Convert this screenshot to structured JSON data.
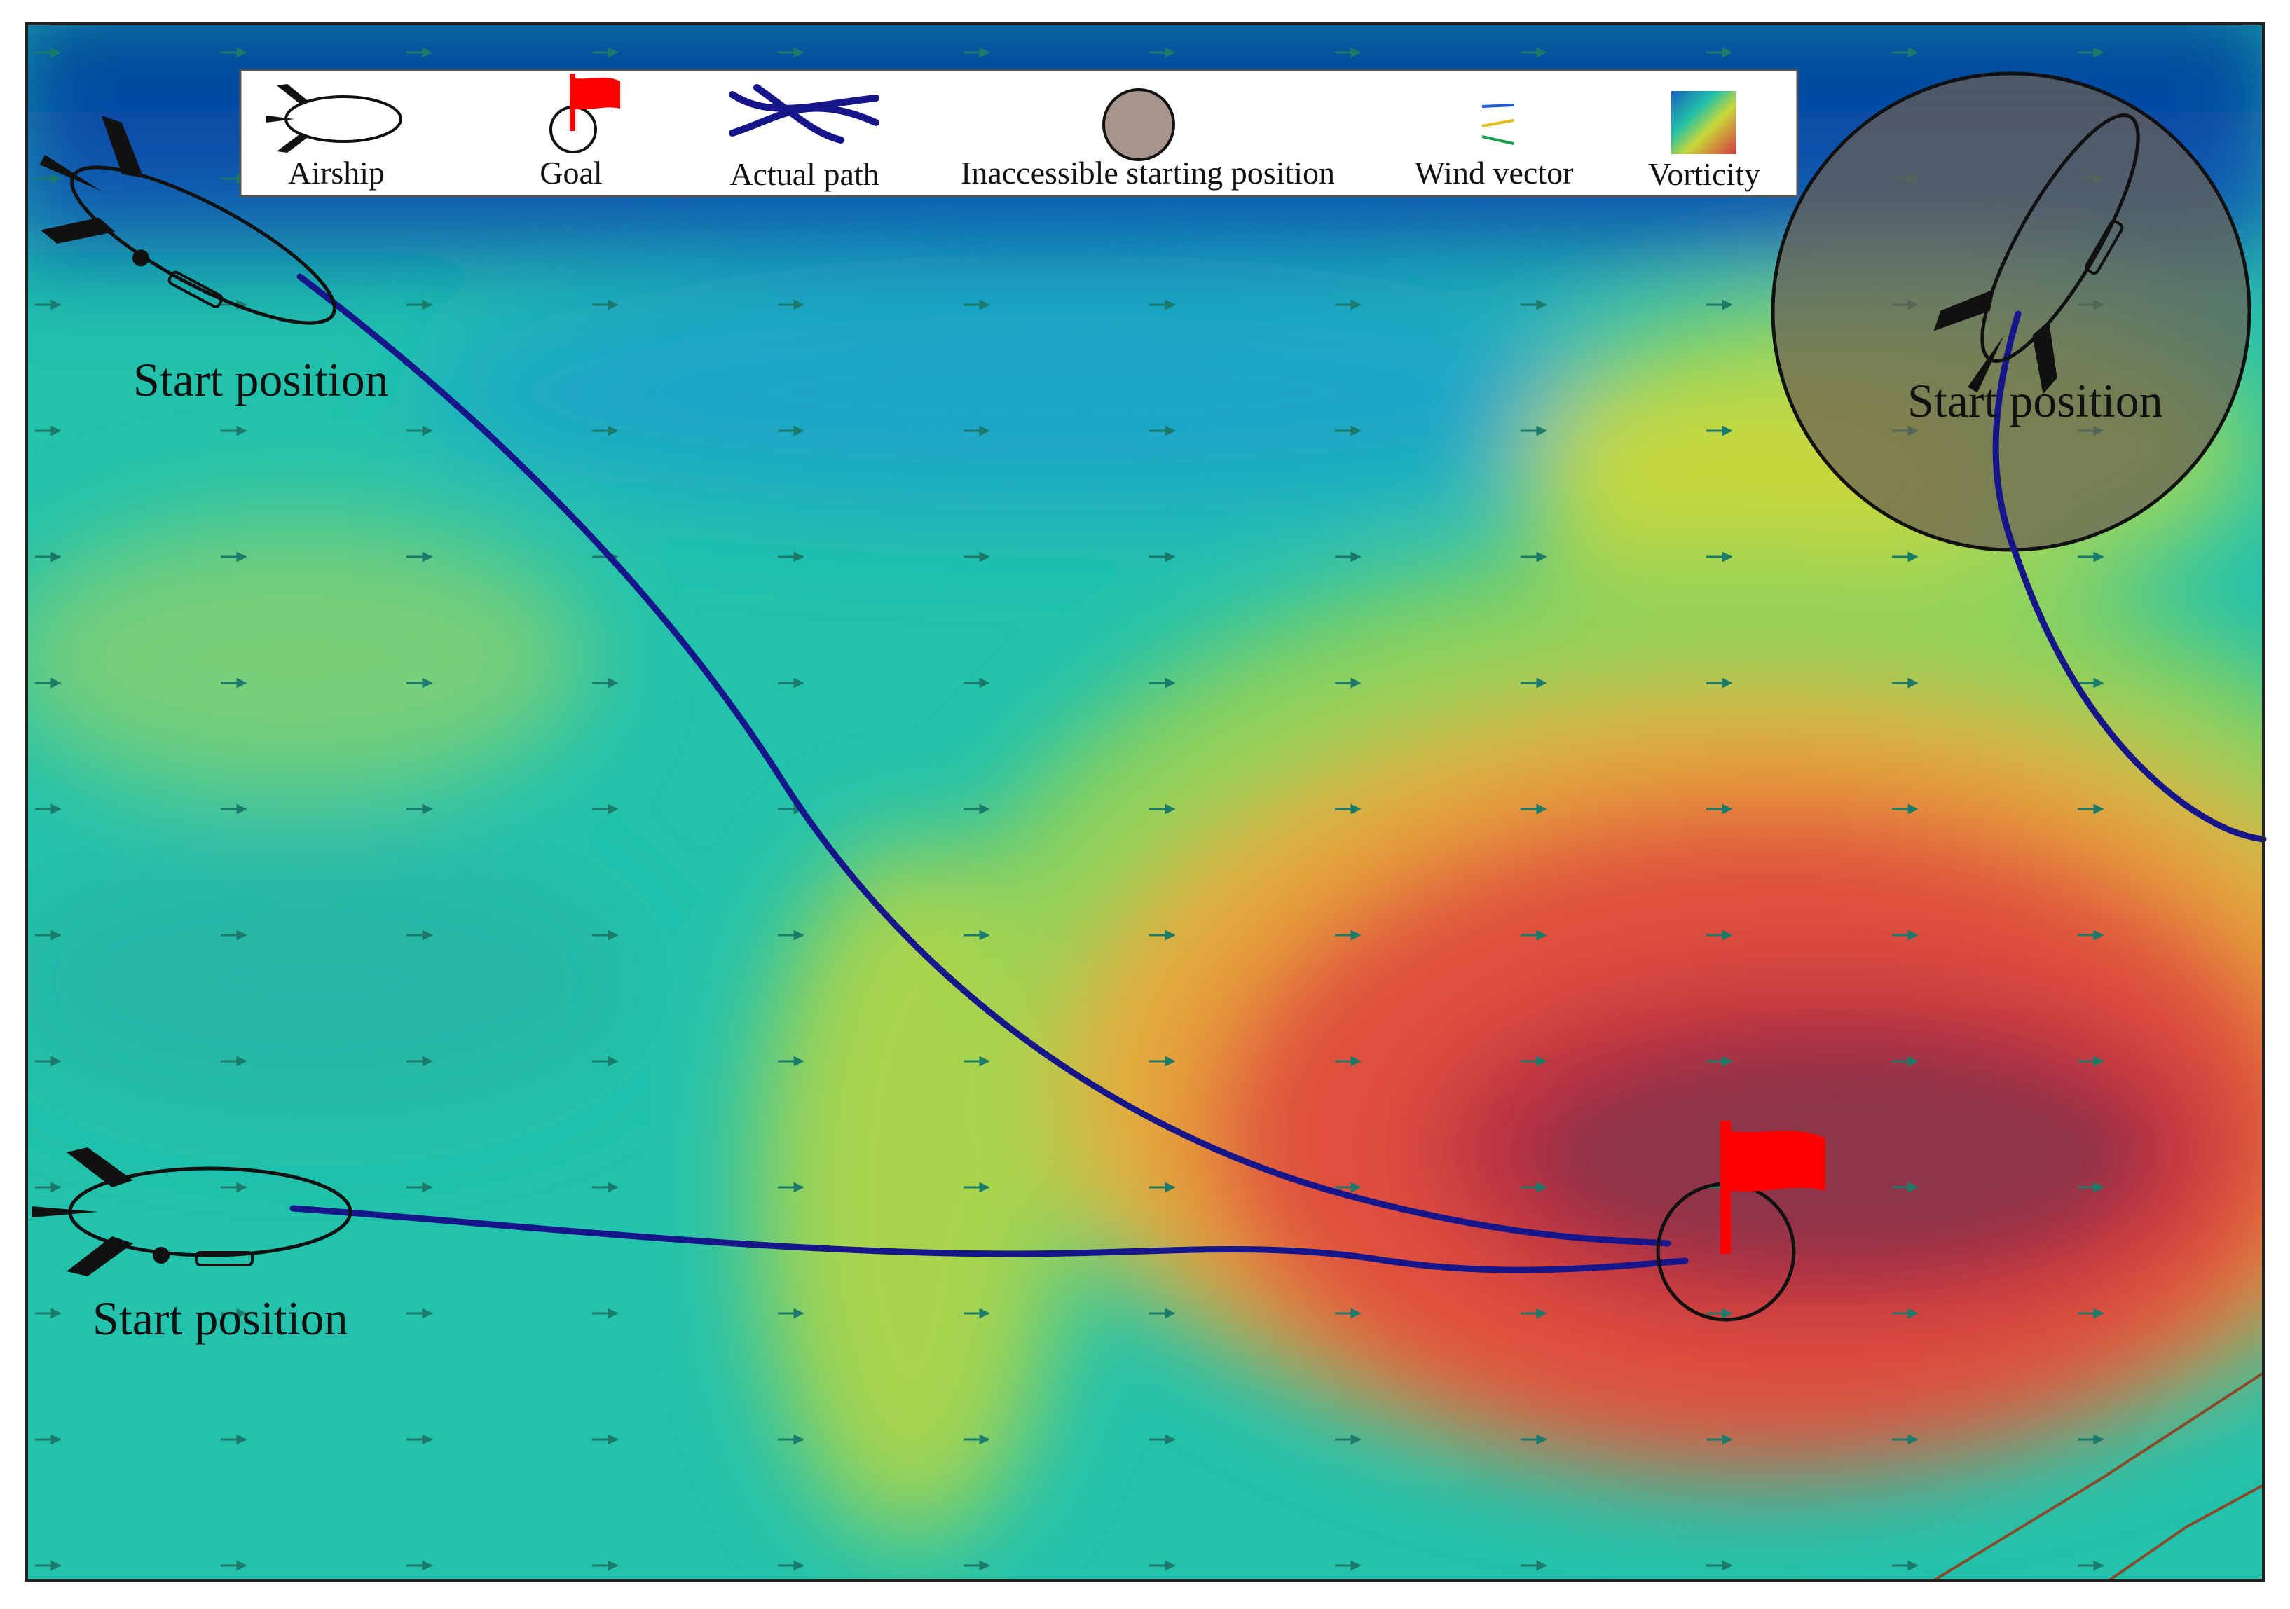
{
  "legend": {
    "airship_label": "Airship",
    "goal_label": "Goal",
    "actual_path_label": "Actual path",
    "inaccessible_label": "Inaccessible starting position",
    "wind_vector_label": "Wind vector",
    "vorticity_label": "Vorticity"
  },
  "markers": {
    "start_top_left_label": "Start position",
    "start_bottom_left_label": "Start position",
    "start_top_right_label": "Start position"
  },
  "colors": {
    "path": "#16168a",
    "goal_flag": "#ff0000",
    "inaccessible_fill": "#7a6a5a",
    "vorticity_low": "#0a4aa8",
    "vorticity_mid": "#5cc88a",
    "vorticity_high": "#d63a3f"
  }
}
